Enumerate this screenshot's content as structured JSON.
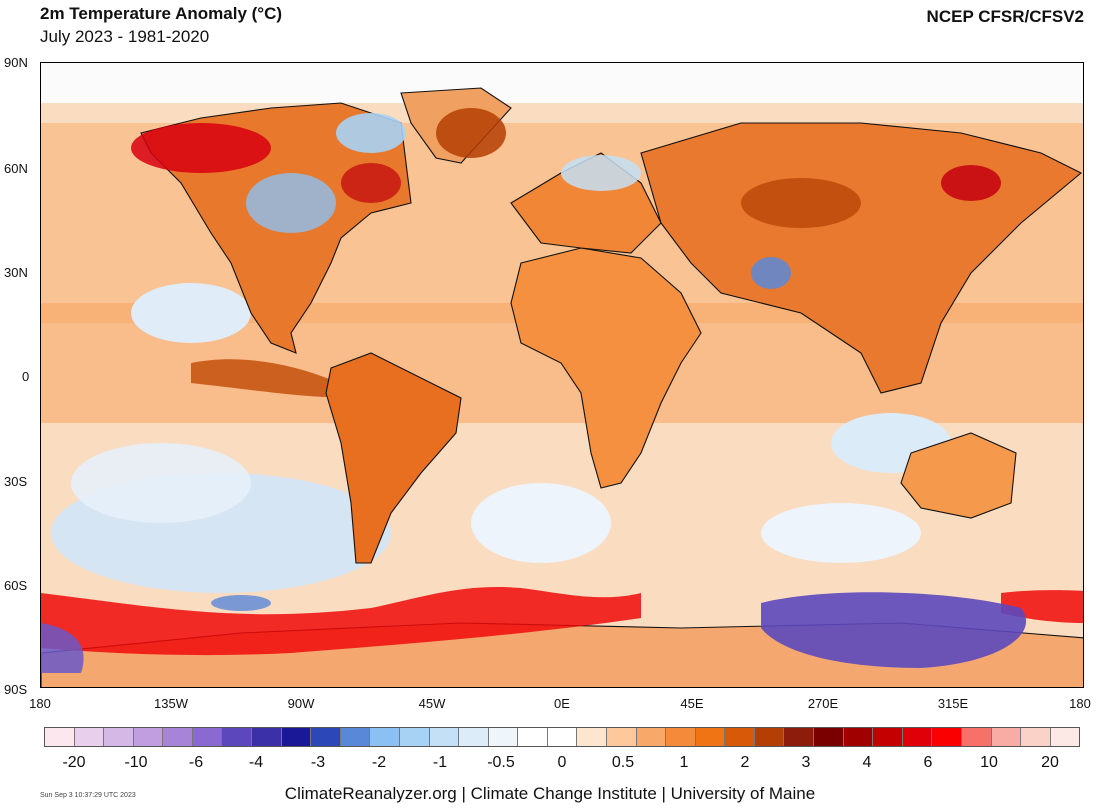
{
  "header": {
    "title": "2m Temperature Anomaly (°C)",
    "subtitle": "July 2023 - 1981-2020",
    "source": "NCEP CFSR/CFSV2"
  },
  "axes": {
    "lat_labels": [
      "90N",
      "60N",
      "30N",
      "0",
      "30S",
      "60S",
      "90S"
    ],
    "lon_labels": [
      "180",
      "135W",
      "90W",
      "45W",
      "0E",
      "45E",
      "270E",
      "315E",
      "180"
    ]
  },
  "colorbar": {
    "colors": [
      "#fde7ee",
      "#e8d0ec",
      "#d6b8e6",
      "#c09ee0",
      "#a884d8",
      "#8a6ad0",
      "#5c48bc",
      "#3c30a8",
      "#1a1896",
      "#2c48b8",
      "#5a88d8",
      "#8cc0f2",
      "#a8d2f4",
      "#c4e0f6",
      "#dcecf8",
      "#eef6fc",
      "#ffffff",
      "#ffffff",
      "#fce6d0",
      "#fcc89c",
      "#f8a868",
      "#f48a3a",
      "#f07414",
      "#d85a08",
      "#b43e04",
      "#8e1c0c",
      "#7a0000",
      "#a00000",
      "#c40000",
      "#e00008",
      "#fa0000",
      "#f8706a",
      "#f8aca4",
      "#fad2c8",
      "#fce8e4"
    ],
    "tick_labels": [
      "-20",
      "-10",
      "-6",
      "-4",
      "-3",
      "-2",
      "-1",
      "-0.5",
      "0",
      "0.5",
      "1",
      "2",
      "3",
      "4",
      "6",
      "10",
      "20"
    ]
  },
  "footer": {
    "timestamp": "Sun Sep  3 10:37:29 UTC 2023",
    "credits": "ClimateReanalyzer.org | Climate Change Institute | University of Maine"
  }
}
